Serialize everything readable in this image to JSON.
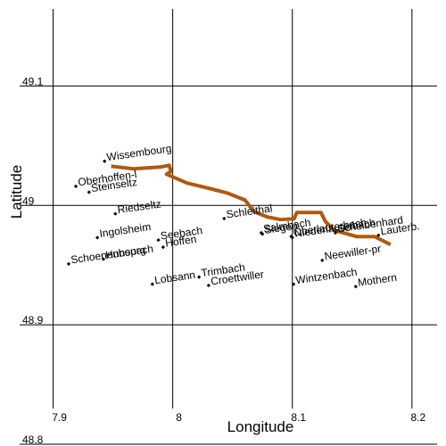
{
  "chart_data": {
    "type": "scatter",
    "x_label": "Longitude",
    "y_label": "Latitude",
    "xlim": [
      7.872,
      8.221
    ],
    "ylim": [
      48.8,
      49.172
    ],
    "xticks": [
      7.9,
      8,
      8.1,
      8.2
    ],
    "yticks": [
      48.8,
      48.9,
      49,
      49.1
    ],
    "grid": true,
    "color": "#000000",
    "points": {
      "labels": [
        "Wissembourg",
        "Oberhoffen-l",
        "Steinseltz",
        "Riedseltz",
        "Ingolsheim",
        "Schoenenbourg",
        "Hunspach",
        "Seebach",
        "Hoffen",
        "Lobsann",
        "Trimbach",
        "Croettwiller",
        "Schleithal",
        "Salmbach",
        "Siegen",
        "Oberlauterbach",
        "Niederlauterbach",
        "Scheibenhard",
        "Lauterb.",
        "Neewiller-pr",
        "Wintzenbach",
        "Mothern"
      ],
      "x": [
        7.943,
        7.919,
        7.93,
        7.952,
        7.937,
        7.913,
        7.942,
        7.988,
        7.992,
        7.983,
        8.022,
        8.03,
        8.043,
        8.074,
        8.075,
        8.099,
        8.1,
        8.136,
        8.172,
        8.125,
        8.101,
        8.153
      ],
      "y": [
        49.037,
        49.016,
        49.011,
        48.993,
        48.973,
        48.951,
        48.955,
        48.971,
        48.965,
        48.934,
        48.94,
        48.933,
        48.989,
        48.977,
        48.976,
        48.974,
        48.973,
        48.977,
        48.975,
        48.954,
        48.934,
        48.932
      ]
    },
    "line": {
      "color": "#b05a0e",
      "x": [
        7.9485,
        7.9672,
        7.9896,
        7.997,
        7.9985,
        7.9948,
        8.0119,
        8.0306,
        8.0455,
        8.0604,
        8.0679,
        8.0791,
        8.0903,
        8.1015,
        8.1037,
        8.1239,
        8.1276,
        8.1351,
        8.1537,
        8.1687,
        8.1821
      ],
      "y": [
        49.0328,
        49.0306,
        49.0321,
        49.0336,
        49.0284,
        49.0261,
        49.0187,
        49.0142,
        49.0104,
        49.0045,
        48.9948,
        48.9903,
        48.9881,
        48.9888,
        48.994,
        48.994,
        48.9866,
        48.9791,
        48.9739,
        48.9739,
        48.9672
      ]
    }
  }
}
